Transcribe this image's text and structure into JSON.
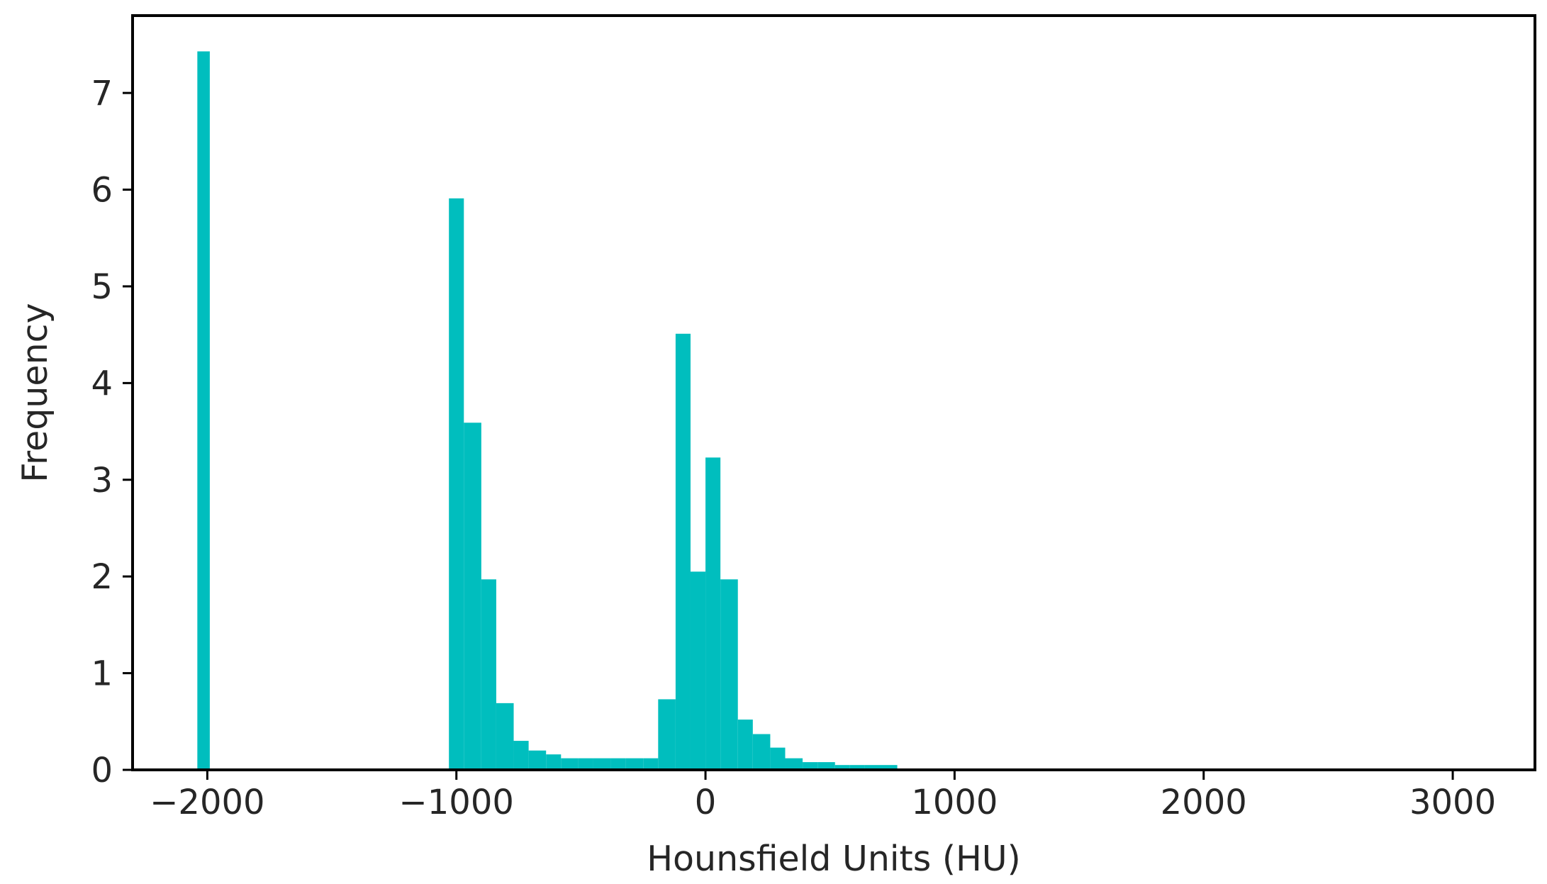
{
  "chart_data": {
    "type": "histogram",
    "xlabel": "Hounsfield Units (HU)",
    "ylabel": "Frequency",
    "xlim": [
      -2300,
      3330
    ],
    "ylim": [
      0,
      7.8
    ],
    "xticks": [
      -2000,
      -1000,
      0,
      1000,
      2000,
      3000
    ],
    "xtick_labels": [
      "−2000",
      "−1000",
      "0",
      "1000",
      "2000",
      "3000"
    ],
    "yticks": [
      0,
      1,
      2,
      3,
      4,
      5,
      6,
      7
    ],
    "ytick_labels": [
      "0",
      "1",
      "2",
      "3",
      "4",
      "5",
      "6",
      "7"
    ],
    "grid": false,
    "bar_color": "#00bebe",
    "bins": [
      {
        "x0": -2040,
        "x1": -1990,
        "value": 7.43
      },
      {
        "x0": -1030,
        "x1": -970,
        "value": 5.91
      },
      {
        "x0": -970,
        "x1": -900,
        "value": 3.59
      },
      {
        "x0": -900,
        "x1": -840,
        "value": 1.97
      },
      {
        "x0": -840,
        "x1": -770,
        "value": 0.69
      },
      {
        "x0": -770,
        "x1": -710,
        "value": 0.3
      },
      {
        "x0": -710,
        "x1": -640,
        "value": 0.2
      },
      {
        "x0": -640,
        "x1": -580,
        "value": 0.16
      },
      {
        "x0": -580,
        "x1": -510,
        "value": 0.12
      },
      {
        "x0": -510,
        "x1": -450,
        "value": 0.12
      },
      {
        "x0": -450,
        "x1": -380,
        "value": 0.12
      },
      {
        "x0": -380,
        "x1": -320,
        "value": 0.12
      },
      {
        "x0": -320,
        "x1": -250,
        "value": 0.12
      },
      {
        "x0": -250,
        "x1": -190,
        "value": 0.12
      },
      {
        "x0": -190,
        "x1": -120,
        "value": 0.73
      },
      {
        "x0": -120,
        "x1": -60,
        "value": 4.51
      },
      {
        "x0": -60,
        "x1": 0,
        "value": 2.05
      },
      {
        "x0": 0,
        "x1": 60,
        "value": 3.23
      },
      {
        "x0": 60,
        "x1": 130,
        "value": 1.97
      },
      {
        "x0": 130,
        "x1": 190,
        "value": 0.52
      },
      {
        "x0": 190,
        "x1": 260,
        "value": 0.37
      },
      {
        "x0": 260,
        "x1": 320,
        "value": 0.23
      },
      {
        "x0": 320,
        "x1": 390,
        "value": 0.12
      },
      {
        "x0": 390,
        "x1": 450,
        "value": 0.08
      },
      {
        "x0": 450,
        "x1": 520,
        "value": 0.08
      },
      {
        "x0": 520,
        "x1": 580,
        "value": 0.05
      },
      {
        "x0": 580,
        "x1": 640,
        "value": 0.05
      },
      {
        "x0": 640,
        "x1": 710,
        "value": 0.05
      },
      {
        "x0": 710,
        "x1": 770,
        "value": 0.05
      }
    ]
  }
}
